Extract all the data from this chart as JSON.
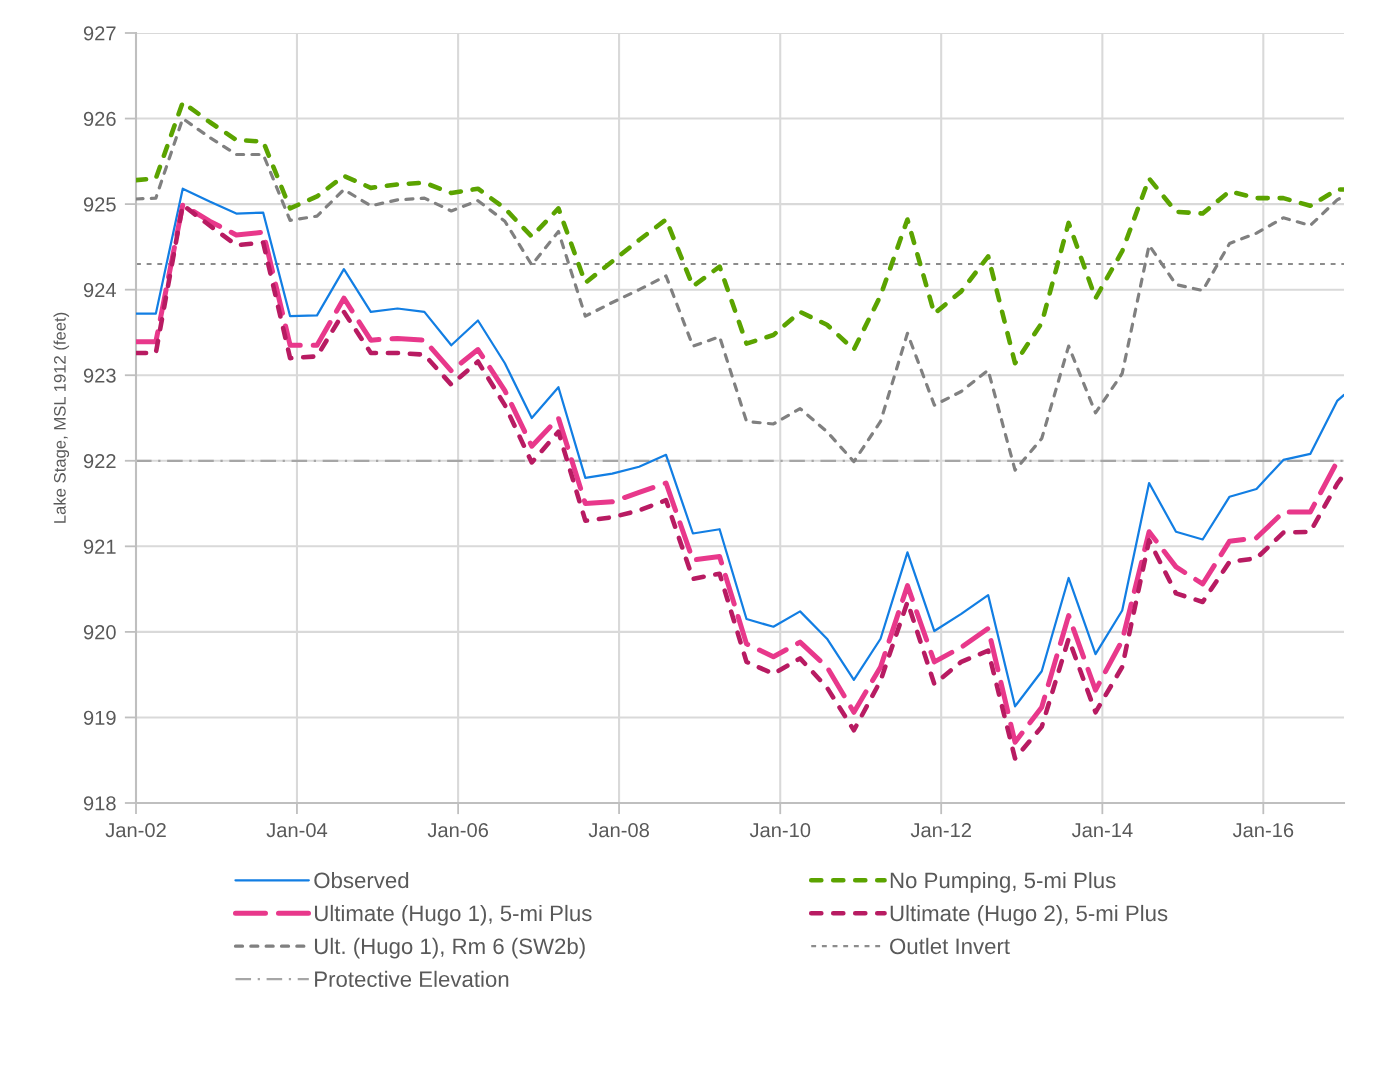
{
  "chart_data": {
    "type": "line",
    "ylabel": "Lake Stage, MSL 1912 (feet)",
    "x": [
      "2002-01",
      "2002-04",
      "2002-08",
      "2002-12",
      "2003-04",
      "2003-08",
      "2003-12",
      "2004-04",
      "2004-08",
      "2004-12",
      "2005-04",
      "2005-08",
      "2005-12",
      "2006-04",
      "2006-08",
      "2006-12",
      "2007-04",
      "2007-08",
      "2007-12",
      "2008-04",
      "2008-08",
      "2008-12",
      "2009-04",
      "2009-08",
      "2009-12",
      "2010-04",
      "2010-08",
      "2010-12",
      "2011-04",
      "2011-08",
      "2011-12",
      "2012-04",
      "2012-08",
      "2012-12",
      "2013-04",
      "2013-08",
      "2013-12",
      "2014-04",
      "2014-08",
      "2014-12",
      "2015-04",
      "2015-08",
      "2015-12",
      "2016-04",
      "2016-08",
      "2016-12",
      "2017-01"
    ],
    "series": [
      {
        "name": "Observed",
        "color": "#127ee3",
        "line_style": "solid",
        "values": [
          923.72,
          923.72,
          925.18,
          925.03,
          924.89,
          924.9,
          923.69,
          923.7,
          924.24,
          923.74,
          923.78,
          923.74,
          923.35,
          923.64,
          923.14,
          922.5,
          922.86,
          921.8,
          921.85,
          921.93,
          922.07,
          921.15,
          921.2,
          920.15,
          920.06,
          920.24,
          919.92,
          919.44,
          919.92,
          920.93,
          920.01,
          920.21,
          920.43,
          919.13,
          919.54,
          920.63,
          919.74,
          920.25,
          921.74,
          921.17,
          921.08,
          921.58,
          921.67,
          922.01,
          922.08,
          922.7,
          922.77
        ]
      },
      {
        "name": "No Pumping, 5-mi Plus",
        "color": "#5ba300",
        "line_style": "dashed",
        "values": [
          925.28,
          925.3,
          926.19,
          925.96,
          925.75,
          925.73,
          924.95,
          925.09,
          925.33,
          925.19,
          925.23,
          925.25,
          925.13,
          925.18,
          924.95,
          924.62,
          924.95,
          924.08,
          924.33,
          924.58,
          924.82,
          924.04,
          924.27,
          923.37,
          923.47,
          923.74,
          923.59,
          923.3,
          923.93,
          924.82,
          923.72,
          923.98,
          924.39,
          923.14,
          923.61,
          924.78,
          923.9,
          924.45,
          925.3,
          924.91,
          924.89,
          925.15,
          925.07,
          925.07,
          924.98,
          925.17,
          925.17
        ]
      },
      {
        "name": "Ultimate (Hugo 1), 5-mi Plus",
        "color": "#e8388b",
        "line_style": "longdash",
        "values": [
          923.39,
          923.39,
          924.99,
          924.8,
          924.64,
          924.67,
          923.35,
          923.35,
          923.9,
          923.41,
          923.43,
          923.41,
          923.05,
          923.3,
          922.82,
          922.17,
          922.5,
          921.5,
          921.52,
          921.63,
          921.74,
          920.84,
          920.88,
          919.86,
          919.71,
          919.88,
          919.59,
          919.06,
          919.59,
          920.54,
          919.65,
          919.82,
          920.04,
          918.71,
          919.12,
          920.19,
          919.32,
          919.9,
          921.17,
          920.76,
          920.56,
          921.06,
          921.1,
          921.4,
          921.4,
          921.99,
          922.03
        ]
      },
      {
        "name": "Ultimate (Hugo 2), 5-mi Plus",
        "color": "#b81b62",
        "line_style": "dashed",
        "values": [
          923.26,
          923.26,
          924.99,
          924.75,
          924.52,
          924.55,
          923.2,
          923.22,
          923.74,
          923.26,
          923.26,
          923.24,
          922.89,
          923.16,
          922.65,
          921.98,
          922.34,
          921.3,
          921.34,
          921.42,
          921.54,
          920.62,
          920.68,
          919.65,
          919.51,
          919.69,
          919.35,
          918.85,
          919.43,
          920.35,
          919.39,
          919.65,
          919.78,
          918.52,
          918.89,
          919.92,
          919.06,
          919.59,
          921.07,
          920.45,
          920.35,
          920.82,
          920.86,
          921.16,
          921.17,
          921.73,
          921.84
        ]
      },
      {
        "name": "Ult. (Hugo 1), Rm 6 (SW2b)",
        "color": "#808080",
        "line_style": "dashed",
        "values": [
          925.06,
          925.07,
          926.0,
          925.78,
          925.58,
          925.58,
          924.81,
          924.86,
          925.17,
          924.98,
          925.05,
          925.07,
          924.92,
          925.04,
          924.8,
          924.29,
          924.68,
          923.69,
          923.85,
          924.0,
          924.16,
          923.34,
          923.45,
          922.46,
          922.43,
          922.61,
          922.34,
          921.99,
          922.46,
          923.49,
          922.65,
          922.81,
          923.06,
          921.89,
          922.26,
          923.34,
          922.56,
          923.02,
          924.52,
          924.06,
          923.99,
          924.54,
          924.66,
          924.84,
          924.75,
          925.05,
          925.09
        ]
      }
    ],
    "ref_lines": [
      {
        "axis": "y",
        "value": 924.3,
        "label": "Outlet Invert",
        "color": "#8c8c8c",
        "line_style": "dashed"
      },
      {
        "axis": "y",
        "value": 922,
        "label": "Protective Elevation",
        "color": "#a6a6a6",
        "line_style": "dashdot"
      }
    ],
    "xlim": [
      "2002-01",
      "2017-01"
    ],
    "xticks": [
      {
        "value": "2002-01",
        "label": "Jan-02"
      },
      {
        "value": "2004-01",
        "label": "Jan-04"
      },
      {
        "value": "2006-01",
        "label": "Jan-06"
      },
      {
        "value": "2008-01",
        "label": "Jan-08"
      },
      {
        "value": "2010-01",
        "label": "Jan-10"
      },
      {
        "value": "2012-01",
        "label": "Jan-12"
      },
      {
        "value": "2014-01",
        "label": "Jan-14"
      },
      {
        "value": "2016-01",
        "label": "Jan-16"
      }
    ],
    "ylim": [
      918,
      927
    ],
    "yticks": [
      918,
      919,
      920,
      921,
      922,
      923,
      924,
      925,
      926,
      927
    ],
    "grid": true,
    "legend": "bottom"
  }
}
